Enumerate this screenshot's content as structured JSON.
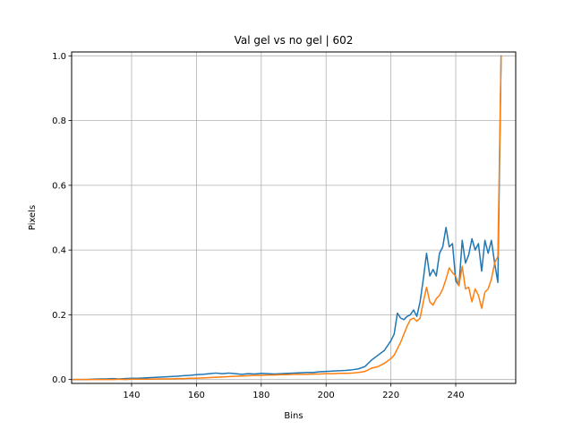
{
  "chart_data": {
    "type": "line",
    "title": "Val gel vs no gel | 602",
    "xlabel": "Bins",
    "ylabel": "Pixels",
    "xlim": [
      121.5,
      258.5
    ],
    "ylim": [
      -0.012,
      1.012
    ],
    "xticks": [
      140,
      160,
      180,
      200,
      220,
      240
    ],
    "yticks": [
      0.0,
      0.2,
      0.4,
      0.6,
      0.8,
      1.0
    ],
    "xtick_labels": [
      "140",
      "160",
      "180",
      "200",
      "220",
      "240"
    ],
    "ytick_labels": [
      "0.0",
      "0.2",
      "0.4",
      "0.6",
      "0.8",
      "1.0"
    ],
    "grid": true,
    "series": [
      {
        "color": "#1f77b4",
        "x": [
          122,
          124,
          126,
          128,
          130,
          132,
          134,
          136,
          138,
          140,
          142,
          144,
          146,
          148,
          150,
          152,
          154,
          156,
          158,
          160,
          162,
          164,
          166,
          168,
          170,
          172,
          174,
          176,
          178,
          180,
          182,
          184,
          186,
          188,
          190,
          192,
          194,
          196,
          198,
          200,
          202,
          204,
          206,
          208,
          210,
          212,
          214,
          216,
          218,
          220,
          221,
          222,
          223,
          224,
          225,
          226,
          227,
          228,
          229,
          230,
          231,
          232,
          233,
          234,
          235,
          236,
          237,
          238,
          239,
          240,
          241,
          242,
          243,
          244,
          245,
          246,
          247,
          248,
          249,
          250,
          251,
          252,
          253,
          254
        ],
        "y": [
          0.0,
          0.0,
          0.0,
          0.001,
          0.002,
          0.002,
          0.003,
          0.002,
          0.003,
          0.004,
          0.004,
          0.005,
          0.006,
          0.007,
          0.008,
          0.009,
          0.01,
          0.012,
          0.013,
          0.015,
          0.016,
          0.018,
          0.02,
          0.018,
          0.02,
          0.018,
          0.016,
          0.018,
          0.017,
          0.019,
          0.018,
          0.017,
          0.018,
          0.019,
          0.02,
          0.021,
          0.022,
          0.022,
          0.024,
          0.025,
          0.026,
          0.027,
          0.028,
          0.03,
          0.033,
          0.04,
          0.06,
          0.075,
          0.09,
          0.12,
          0.14,
          0.205,
          0.19,
          0.185,
          0.195,
          0.2,
          0.215,
          0.195,
          0.24,
          0.31,
          0.39,
          0.32,
          0.34,
          0.32,
          0.39,
          0.41,
          0.47,
          0.41,
          0.42,
          0.305,
          0.29,
          0.43,
          0.36,
          0.385,
          0.435,
          0.4,
          0.42,
          0.335,
          0.43,
          0.39,
          0.43,
          0.36,
          0.3,
          1.0
        ]
      },
      {
        "color": "#ff7f0e",
        "x": [
          122,
          124,
          126,
          128,
          130,
          132,
          134,
          136,
          138,
          140,
          142,
          144,
          146,
          148,
          150,
          152,
          154,
          156,
          158,
          160,
          162,
          164,
          166,
          168,
          170,
          172,
          174,
          176,
          178,
          180,
          182,
          184,
          186,
          188,
          190,
          192,
          194,
          196,
          198,
          200,
          202,
          204,
          206,
          208,
          210,
          212,
          214,
          216,
          218,
          220,
          221,
          222,
          223,
          224,
          225,
          226,
          227,
          228,
          229,
          230,
          231,
          232,
          233,
          234,
          235,
          236,
          237,
          238,
          239,
          240,
          241,
          242,
          243,
          244,
          245,
          246,
          247,
          248,
          249,
          250,
          251,
          252,
          253,
          254
        ],
        "y": [
          0.0,
          0.0,
          0.0,
          0.0,
          0.0,
          0.0,
          0.0,
          0.001,
          0.0,
          0.001,
          0.001,
          0.001,
          0.001,
          0.002,
          0.002,
          0.002,
          0.003,
          0.003,
          0.004,
          0.004,
          0.005,
          0.006,
          0.007,
          0.008,
          0.009,
          0.01,
          0.011,
          0.012,
          0.013,
          0.013,
          0.014,
          0.014,
          0.015,
          0.015,
          0.016,
          0.016,
          0.016,
          0.017,
          0.017,
          0.018,
          0.018,
          0.019,
          0.019,
          0.02,
          0.022,
          0.025,
          0.035,
          0.04,
          0.05,
          0.065,
          0.075,
          0.095,
          0.115,
          0.14,
          0.165,
          0.185,
          0.19,
          0.18,
          0.19,
          0.24,
          0.285,
          0.24,
          0.23,
          0.25,
          0.26,
          0.28,
          0.31,
          0.345,
          0.33,
          0.32,
          0.29,
          0.35,
          0.28,
          0.285,
          0.24,
          0.28,
          0.26,
          0.22,
          0.27,
          0.28,
          0.31,
          0.36,
          0.38,
          1.0
        ]
      }
    ]
  }
}
